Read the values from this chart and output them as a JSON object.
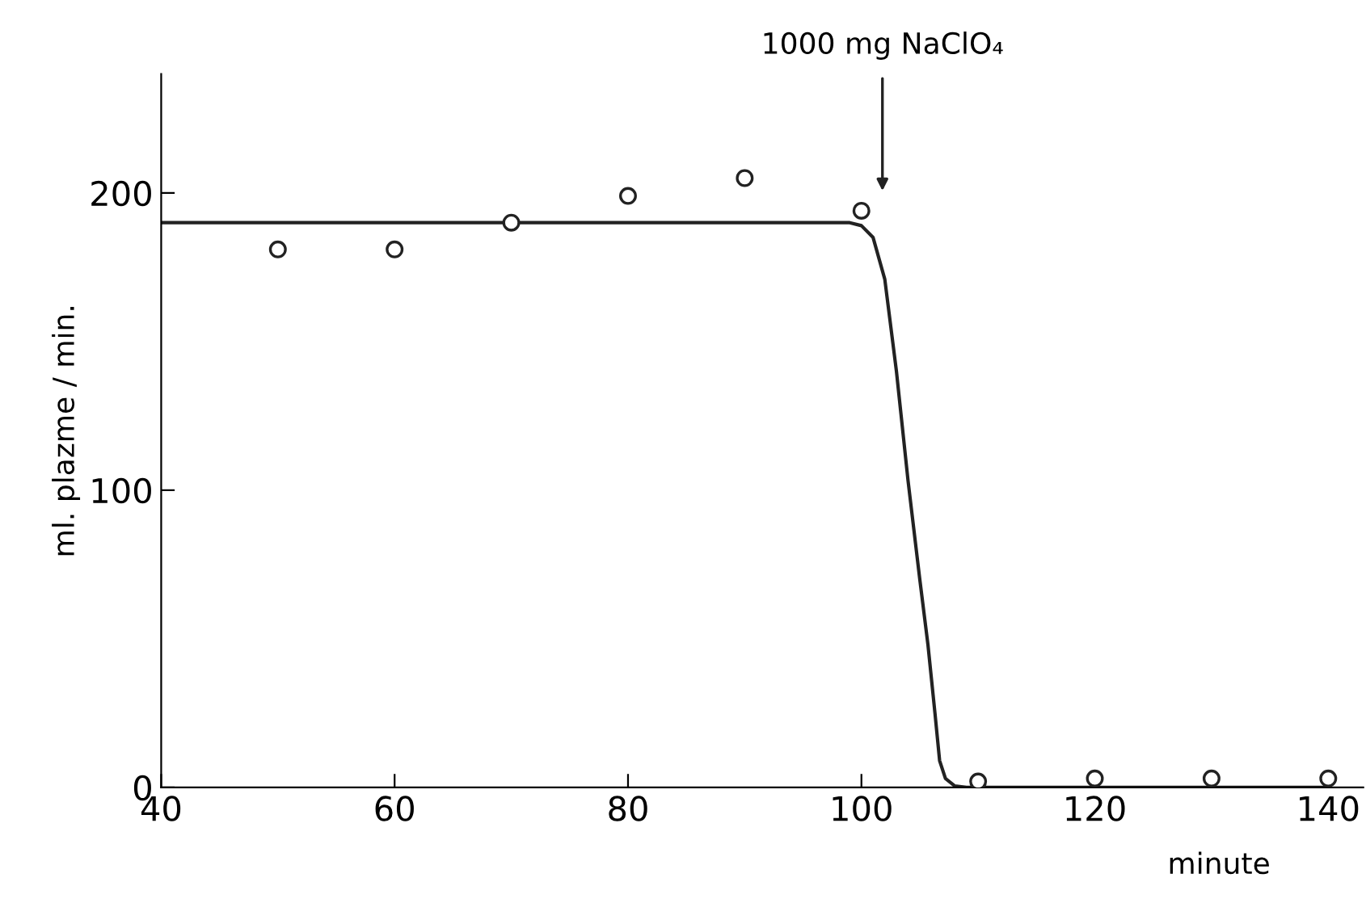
{
  "chart_data": {
    "type": "scatter",
    "xlabel": "minute",
    "ylabel": "ml. plazme / min.",
    "xlim": [
      40,
      143
    ],
    "ylim": [
      0,
      240
    ],
    "xticks": [
      40,
      60,
      80,
      100,
      120,
      140
    ],
    "yticks": [
      0,
      100,
      200
    ],
    "grid": false,
    "legend": false,
    "marker": "circle",
    "annotations": [
      "1000 mg NaClO₄"
    ],
    "series": [
      {
        "color": "#222222",
        "x": [
          50,
          60,
          70,
          80,
          90,
          100,
          110,
          120,
          130,
          140
        ],
        "values": [
          181,
          181,
          190,
          199,
          205,
          194,
          2,
          3,
          3,
          3
        ]
      },
      {
        "type": "line",
        "color": "#222222",
        "marker": "none",
        "line_style": "solid",
        "x": [
          40,
          99,
          100,
          101,
          102,
          103,
          104,
          105,
          105.7,
          106.3,
          106.7,
          107.2,
          108,
          109,
          110,
          140
        ],
        "values": [
          190,
          190,
          189,
          185,
          171,
          140,
          103,
          70,
          48,
          25,
          9,
          3,
          0.5,
          0,
          0,
          0
        ]
      }
    ]
  }
}
